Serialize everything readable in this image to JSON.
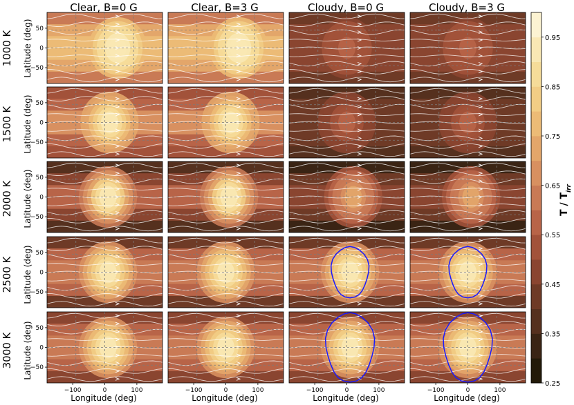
{
  "figure": {
    "column_titles": [
      "Clear, B=0 G",
      "Clear, B=3 G",
      "Cloudy, B=0 G",
      "Cloudy, B=3 G"
    ],
    "row_labels": [
      "1000 K",
      "1500 K",
      "2000 K",
      "2500 K",
      "3000 K"
    ],
    "ylabel": "Latitude (deg)",
    "xlabel": "Longitude (deg)",
    "colorbar_label": "T / T",
    "colorbar_label_sub": "irr"
  },
  "chart_data": {
    "type": "heatmap",
    "description_free_grid": true,
    "columns": [
      "Clear, B=0 G",
      "Clear, B=3 G",
      "Cloudy, B=0 G",
      "Cloudy, B=3 G"
    ],
    "rows": [
      "1000 K",
      "1500 K",
      "2000 K",
      "2500 K",
      "3000 K"
    ],
    "xlabel": "Longitude (deg)",
    "ylabel": "Latitude (deg)",
    "xlim": [
      -180,
      180
    ],
    "ylim": [
      -90,
      90
    ],
    "xticks": [
      -100,
      0,
      100
    ],
    "yticks": [
      50,
      0,
      -50
    ],
    "xtick_labels": [
      "−100",
      "0",
      "100"
    ],
    "ytick_labels": [
      "50",
      "0",
      "−50"
    ],
    "colorbar": {
      "label": "T / T_irr",
      "min": 0.25,
      "max": 1.0,
      "ticks": [
        0.25,
        0.35,
        0.45,
        0.55,
        0.65,
        0.75,
        0.85,
        0.95
      ],
      "tick_labels": [
        "0.25",
        "0.35",
        "0.45",
        "0.55",
        "0.65",
        "0.75",
        "0.85",
        "0.95"
      ],
      "levels": 15,
      "colors": [
        "#221908",
        "#3a2414",
        "#55301e",
        "#6e3a26",
        "#8a4530",
        "#a2523a",
        "#b86448",
        "#c97a55",
        "#d89060",
        "#e3a66a",
        "#ecbb76",
        "#f2cd85",
        "#f6dc99",
        "#f9e8b4",
        "#fcf3d2"
      ]
    },
    "panels": [
      {
        "row": "1000 K",
        "col": "Clear, B=0 G",
        "max_ratio": 0.95,
        "min_ratio": 0.6,
        "hot_spot_lon": 40,
        "contour": false
      },
      {
        "row": "1000 K",
        "col": "Clear, B=3 G",
        "max_ratio": 0.95,
        "min_ratio": 0.6,
        "hot_spot_lon": 40,
        "contour": false
      },
      {
        "row": "1000 K",
        "col": "Cloudy, B=0 G",
        "max_ratio": 0.55,
        "min_ratio": 0.42,
        "hot_spot_lon": 0,
        "contour": false
      },
      {
        "row": "1000 K",
        "col": "Cloudy, B=3 G",
        "max_ratio": 0.55,
        "min_ratio": 0.42,
        "hot_spot_lon": 0,
        "contour": false
      },
      {
        "row": "1500 K",
        "col": "Clear, B=0 G",
        "max_ratio": 0.92,
        "min_ratio": 0.45,
        "hot_spot_lon": 15,
        "contour": false
      },
      {
        "row": "1500 K",
        "col": "Clear, B=3 G",
        "max_ratio": 0.92,
        "min_ratio": 0.45,
        "hot_spot_lon": 15,
        "contour": false
      },
      {
        "row": "1500 K",
        "col": "Cloudy, B=0 G",
        "max_ratio": 0.55,
        "min_ratio": 0.35,
        "hot_spot_lon": 0,
        "contour": false
      },
      {
        "row": "1500 K",
        "col": "Cloudy, B=3 G",
        "max_ratio": 0.55,
        "min_ratio": 0.35,
        "hot_spot_lon": 0,
        "contour": false
      },
      {
        "row": "2000 K",
        "col": "Clear, B=0 G",
        "max_ratio": 0.92,
        "min_ratio": 0.3,
        "hot_spot_lon": 10,
        "contour": false
      },
      {
        "row": "2000 K",
        "col": "Clear, B=3 G",
        "max_ratio": 0.92,
        "min_ratio": 0.3,
        "hot_spot_lon": 10,
        "contour": false
      },
      {
        "row": "2000 K",
        "col": "Cloudy, B=0 G",
        "max_ratio": 0.72,
        "min_ratio": 0.3,
        "hot_spot_lon": 20,
        "contour": false
      },
      {
        "row": "2000 K",
        "col": "Cloudy, B=3 G",
        "max_ratio": 0.72,
        "min_ratio": 0.3,
        "hot_spot_lon": 10,
        "contour": false
      },
      {
        "row": "2500 K",
        "col": "Clear, B=0 G",
        "max_ratio": 0.92,
        "min_ratio": 0.38,
        "hot_spot_lon": 10,
        "contour": false
      },
      {
        "row": "2500 K",
        "col": "Clear, B=3 G",
        "max_ratio": 0.92,
        "min_ratio": 0.38,
        "hot_spot_lon": 0,
        "contour": false
      },
      {
        "row": "2500 K",
        "col": "Cloudy, B=0 G",
        "max_ratio": 0.92,
        "min_ratio": 0.38,
        "hot_spot_lon": 10,
        "contour": true
      },
      {
        "row": "2500 K",
        "col": "Cloudy, B=3 G",
        "max_ratio": 0.92,
        "min_ratio": 0.38,
        "hot_spot_lon": 0,
        "contour": true
      },
      {
        "row": "3000 K",
        "col": "Clear, B=0 G",
        "max_ratio": 0.95,
        "min_ratio": 0.4,
        "hot_spot_lon": 10,
        "contour": false
      },
      {
        "row": "3000 K",
        "col": "Clear, B=3 G",
        "max_ratio": 0.95,
        "min_ratio": 0.4,
        "hot_spot_lon": 0,
        "contour": false
      },
      {
        "row": "3000 K",
        "col": "Cloudy, B=0 G",
        "max_ratio": 0.95,
        "min_ratio": 0.4,
        "hot_spot_lon": 10,
        "contour": true
      },
      {
        "row": "3000 K",
        "col": "Cloudy, B=3 G",
        "max_ratio": 0.95,
        "min_ratio": 0.4,
        "hot_spot_lon": 0,
        "contour": true
      }
    ],
    "streamline_color": "#ffffff",
    "contour_color": "#1a1aff",
    "grid": true
  }
}
